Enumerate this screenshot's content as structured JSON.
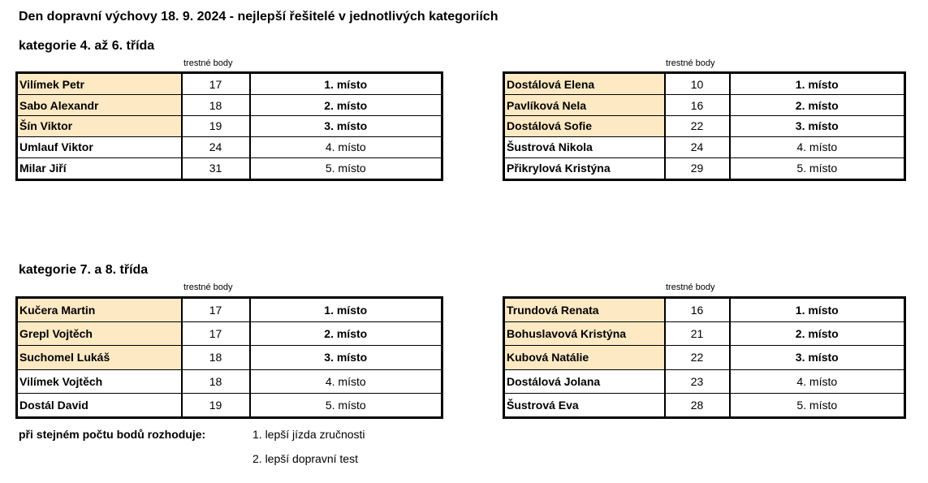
{
  "title": "Den dopravní výchovy 18. 9. 2024 - nejlepší řešitelé v jednotlivých kategoriích",
  "points_header": "trestné body",
  "sections": [
    {
      "label": "kategorie 4. až 6. třída",
      "tables": [
        {
          "rows": [
            {
              "name": "Vilímek Petr",
              "points": "17",
              "place": "1. místo"
            },
            {
              "name": "Sabo Alexandr",
              "points": "18",
              "place": "2. místo"
            },
            {
              "name": "Šín Viktor",
              "points": "19",
              "place": "3. místo"
            },
            {
              "name": "Umlauf Viktor",
              "points": "24",
              "place": "4. místo"
            },
            {
              "name": "Milar Jiří",
              "points": "31",
              "place": "5. místo"
            }
          ]
        },
        {
          "rows": [
            {
              "name": "Dostálová Elena",
              "points": "10",
              "place": "1. místo"
            },
            {
              "name": "Pavlíková Nela",
              "points": "16",
              "place": "2. místo"
            },
            {
              "name": "Dostálová Sofie",
              "points": "22",
              "place": "3. místo"
            },
            {
              "name": "Šustrová Nikola",
              "points": "24",
              "place": "4. místo"
            },
            {
              "name": "Přikrylová Kristýna",
              "points": "29",
              "place": "5. místo"
            }
          ]
        }
      ]
    },
    {
      "label": "kategorie 7. a 8. třída",
      "tables": [
        {
          "rows": [
            {
              "name": "Kučera Martin",
              "points": "17",
              "place": "1. místo"
            },
            {
              "name": "Grepl Vojtěch",
              "points": "17",
              "place": "2. místo"
            },
            {
              "name": "Suchomel Lukáš",
              "points": "18",
              "place": "3. místo"
            },
            {
              "name": "Vilímek Vojtěch",
              "points": "18",
              "place": "4. místo"
            },
            {
              "name": "Dostál David",
              "points": "19",
              "place": "5. místo"
            }
          ]
        },
        {
          "rows": [
            {
              "name": "Trundová Renata",
              "points": "16",
              "place": "1. místo"
            },
            {
              "name": "Bohuslavová Kristýna",
              "points": "21",
              "place": "2. místo"
            },
            {
              "name": "Kubová Natálie",
              "points": "22",
              "place": "3. místo"
            },
            {
              "name": "Dostálová Jolana",
              "points": "23",
              "place": "4. místo"
            },
            {
              "name": "Šustrová Eva",
              "points": "28",
              "place": "5. místo"
            }
          ]
        }
      ]
    }
  ],
  "tiebreak": {
    "label": "při stejném počtu bodů rozhoduje:",
    "items": [
      "1. lepší jízda zručnosti",
      "2. lepší dopravní test"
    ]
  },
  "colors": {
    "highlight": "#fde9c3"
  }
}
